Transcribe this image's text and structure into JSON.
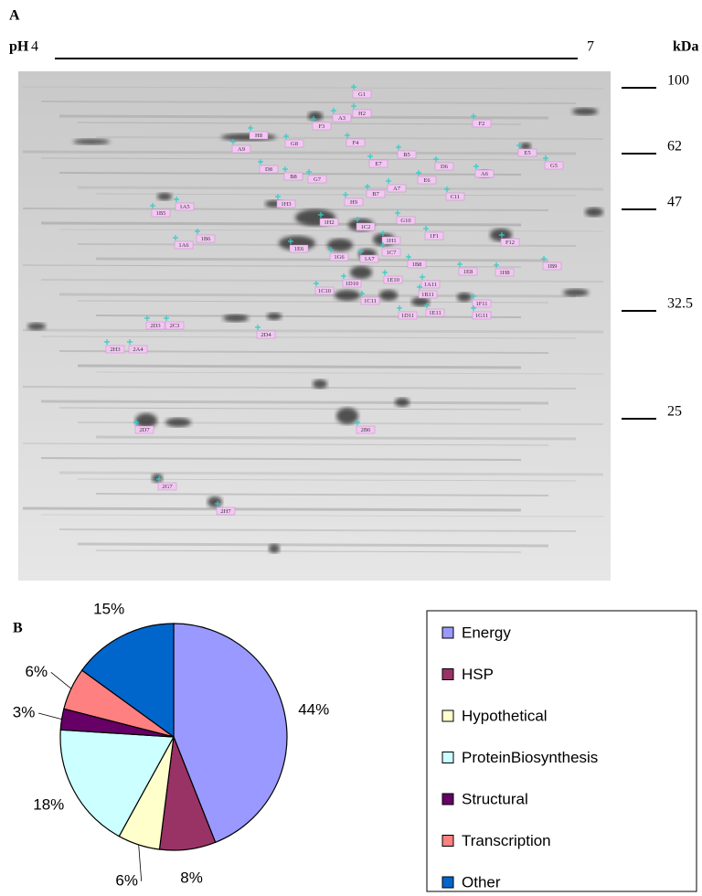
{
  "panel_a": {
    "label": "A",
    "ph_label": "pH",
    "ph_start": "4",
    "ph_end": "7",
    "mw_unit": "kDa",
    "mw_markers": [
      "100",
      "62",
      "47",
      "32.5",
      "25"
    ],
    "spots": [
      "G1",
      "H2",
      "A3",
      "F3",
      "F2",
      "H8",
      "G8",
      "A9",
      "F4",
      "B5",
      "E5",
      "G5",
      "E7",
      "D6",
      "A6",
      "D8",
      "B8",
      "G7",
      "E6",
      "A7",
      "B7",
      "C11",
      "H9",
      "1H3",
      "1A5",
      "1B5",
      "G10",
      "1H2",
      "1C2",
      "1F1",
      "1B6",
      "1A6",
      "1H1",
      "F12",
      "1E6",
      "1G6",
      "1A7",
      "1C7",
      "1B8",
      "1E8",
      "1H8",
      "1B9",
      "1D10",
      "1E10",
      "1A11",
      "1B11",
      "1C10",
      "1C11",
      "1F11",
      "1E11",
      "1D11",
      "1G11",
      "2D3",
      "2C3",
      "2D4",
      "2H3",
      "2A4",
      "2D7",
      "2B6",
      "2G7",
      "2H7"
    ]
  },
  "chart_data": {
    "type": "pie",
    "panel_label": "B",
    "categories": [
      "Energy",
      "HSP",
      "Hypothetical",
      "ProteinBiosynthesis",
      "Structural",
      "Transcription",
      "Other"
    ],
    "values": [
      44,
      8,
      6,
      18,
      3,
      6,
      15
    ],
    "value_labels": [
      "44%",
      "8%",
      "6%",
      "18%",
      "3%",
      "6%",
      "15%"
    ],
    "colors": [
      "#9999ff",
      "#993366",
      "#ffffcc",
      "#ccffff",
      "#660066",
      "#ff8080",
      "#0066cc"
    ]
  }
}
